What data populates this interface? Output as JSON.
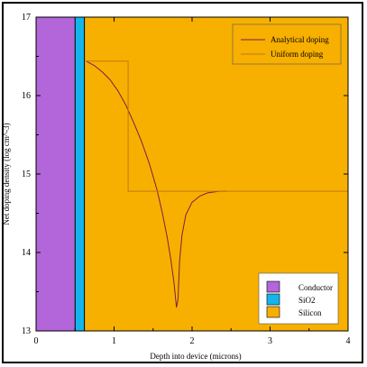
{
  "chart_data": {
    "type": "line",
    "xlabel": "Depth into device (microns)",
    "ylabel": "Net doping density (log cm^-3)",
    "xlim": [
      0,
      4
    ],
    "ylim": [
      13,
      17
    ],
    "x_ticks": [
      "0",
      "1",
      "2",
      "3",
      "4"
    ],
    "y_ticks": [
      "13",
      "14",
      "15",
      "16",
      "17"
    ],
    "regions": [
      {
        "name": "Conductor",
        "x": [
          0,
          0.5
        ],
        "color": "#B266D9"
      },
      {
        "name": "SiO2",
        "x": [
          0.5,
          0.62
        ],
        "color": "#13B5EA"
      },
      {
        "name": "Silicon",
        "x": [
          0.62,
          4
        ],
        "color": "#F7B000"
      }
    ],
    "series": [
      {
        "name": "Analytical doping",
        "color": "#7a2040",
        "x": [
          0.64,
          0.75,
          0.85,
          0.95,
          1.05,
          1.15,
          1.25,
          1.35,
          1.45,
          1.55,
          1.62,
          1.68,
          1.73,
          1.77,
          1.8,
          1.82,
          1.84,
          1.87,
          1.92,
          2.0,
          2.1,
          2.2,
          2.35,
          2.45
        ],
        "y": [
          16.44,
          16.38,
          16.3,
          16.2,
          16.06,
          15.88,
          15.66,
          15.42,
          15.14,
          14.8,
          14.5,
          14.2,
          13.9,
          13.6,
          13.3,
          13.4,
          13.9,
          14.22,
          14.48,
          14.64,
          14.72,
          14.76,
          14.78,
          14.78
        ]
      },
      {
        "name": "Uniform doping",
        "color": "#c07a10",
        "x": [
          0.64,
          1.18,
          1.18,
          4.0
        ],
        "y": [
          16.44,
          16.44,
          14.78,
          14.78
        ]
      }
    ],
    "legend_regions": [
      "Conductor",
      "SiO2",
      "Silicon"
    ]
  }
}
